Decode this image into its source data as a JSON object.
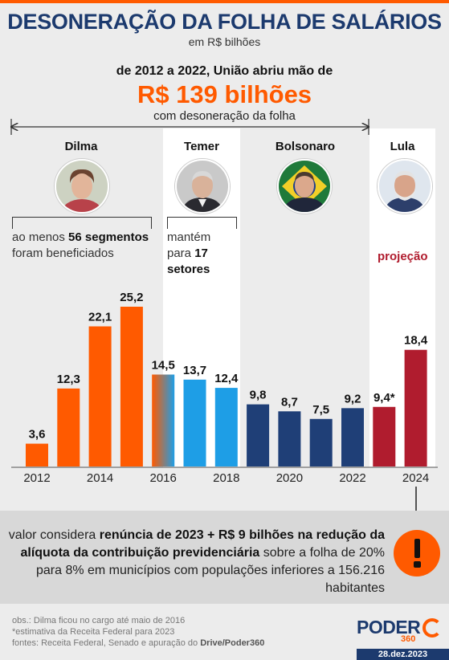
{
  "header": {
    "title": "DESONERAÇÃO DA FOLHA DE SALÁRIOS",
    "subtitle": "em R$ bilhões",
    "headline_pre": "de 2012 a 2022, União abriu mão de",
    "headline_value": "R$ 139 bilhões",
    "headline_post": "com desoneração da folha"
  },
  "presidents": [
    {
      "name": "Dilma",
      "note": [
        "ao menos ",
        "56",
        " ",
        "segmentos",
        " foram beneficiados"
      ]
    },
    {
      "name": "Temer",
      "note": [
        "mantém para ",
        "17",
        " ",
        "setores",
        ""
      ]
    },
    {
      "name": "Bolsonaro"
    },
    {
      "name": "Lula",
      "projection_label": "projeção"
    }
  ],
  "colors": {
    "orange": "#ff5a00",
    "light_blue": "#1e9ee6",
    "dark_blue": "#1f3f77",
    "red": "#b01c2e",
    "accent_title": "#1c3a6e"
  },
  "chart_data": {
    "type": "bar",
    "title": "DESONERAÇÃO DA FOLHA DE SALÁRIOS",
    "subtitle": "em R$ bilhões",
    "x": [
      2012,
      2013,
      2014,
      2015,
      2016,
      2017,
      2018,
      2019,
      2020,
      2021,
      2022,
      2023,
      2024
    ],
    "values": [
      3.6,
      12.3,
      22.1,
      25.2,
      14.5,
      13.7,
      12.4,
      9.8,
      8.7,
      7.5,
      9.2,
      9.4,
      18.4
    ],
    "value_labels": [
      "3,6",
      "12,3",
      "22,1",
      "25,2",
      "14,5",
      "13,7",
      "12,4",
      "9,8",
      "8,7",
      "7,5",
      "9,2",
      "9,4*",
      "18,4"
    ],
    "tick_labels": [
      "2012",
      "2014",
      "2016",
      "2018",
      "2020",
      "2022",
      "2024"
    ],
    "tick_years": [
      2012,
      2014,
      2016,
      2018,
      2020,
      2022,
      2024
    ],
    "ylim": [
      0,
      25.2
    ],
    "grid": false,
    "bar_colors": [
      "#ff5a00",
      "#ff5a00",
      "#ff5a00",
      "#ff5a00",
      "gradient",
      "#1e9ee6",
      "#1e9ee6",
      "#1f3f77",
      "#1f3f77",
      "#1f3f77",
      "#1f3f77",
      "#b01c2e",
      "#b01c2e"
    ]
  },
  "callout": {
    "text_1": "valor considera ",
    "bold_1": "renúncia de 2023 + R$ 9 bilhões na redução da alíquota da contribuição previdenciária",
    "text_2": " sobre a folha de 20% para 8% em municípios com populações inferiores a 156.216 habitantes",
    "icon": "exclamation-icon"
  },
  "footer": {
    "obs": "obs.: Dilma ficou no cargo até maio de 2016",
    "estimate": "*estimativa da Receita Federal para 2023",
    "sources_prefix": "fontes: Receita Federal, Senado e apuração do ",
    "sources_bold": "Drive/Poder360",
    "logo": "PODER",
    "logo_number": "360",
    "date": "28.dez.2023"
  }
}
